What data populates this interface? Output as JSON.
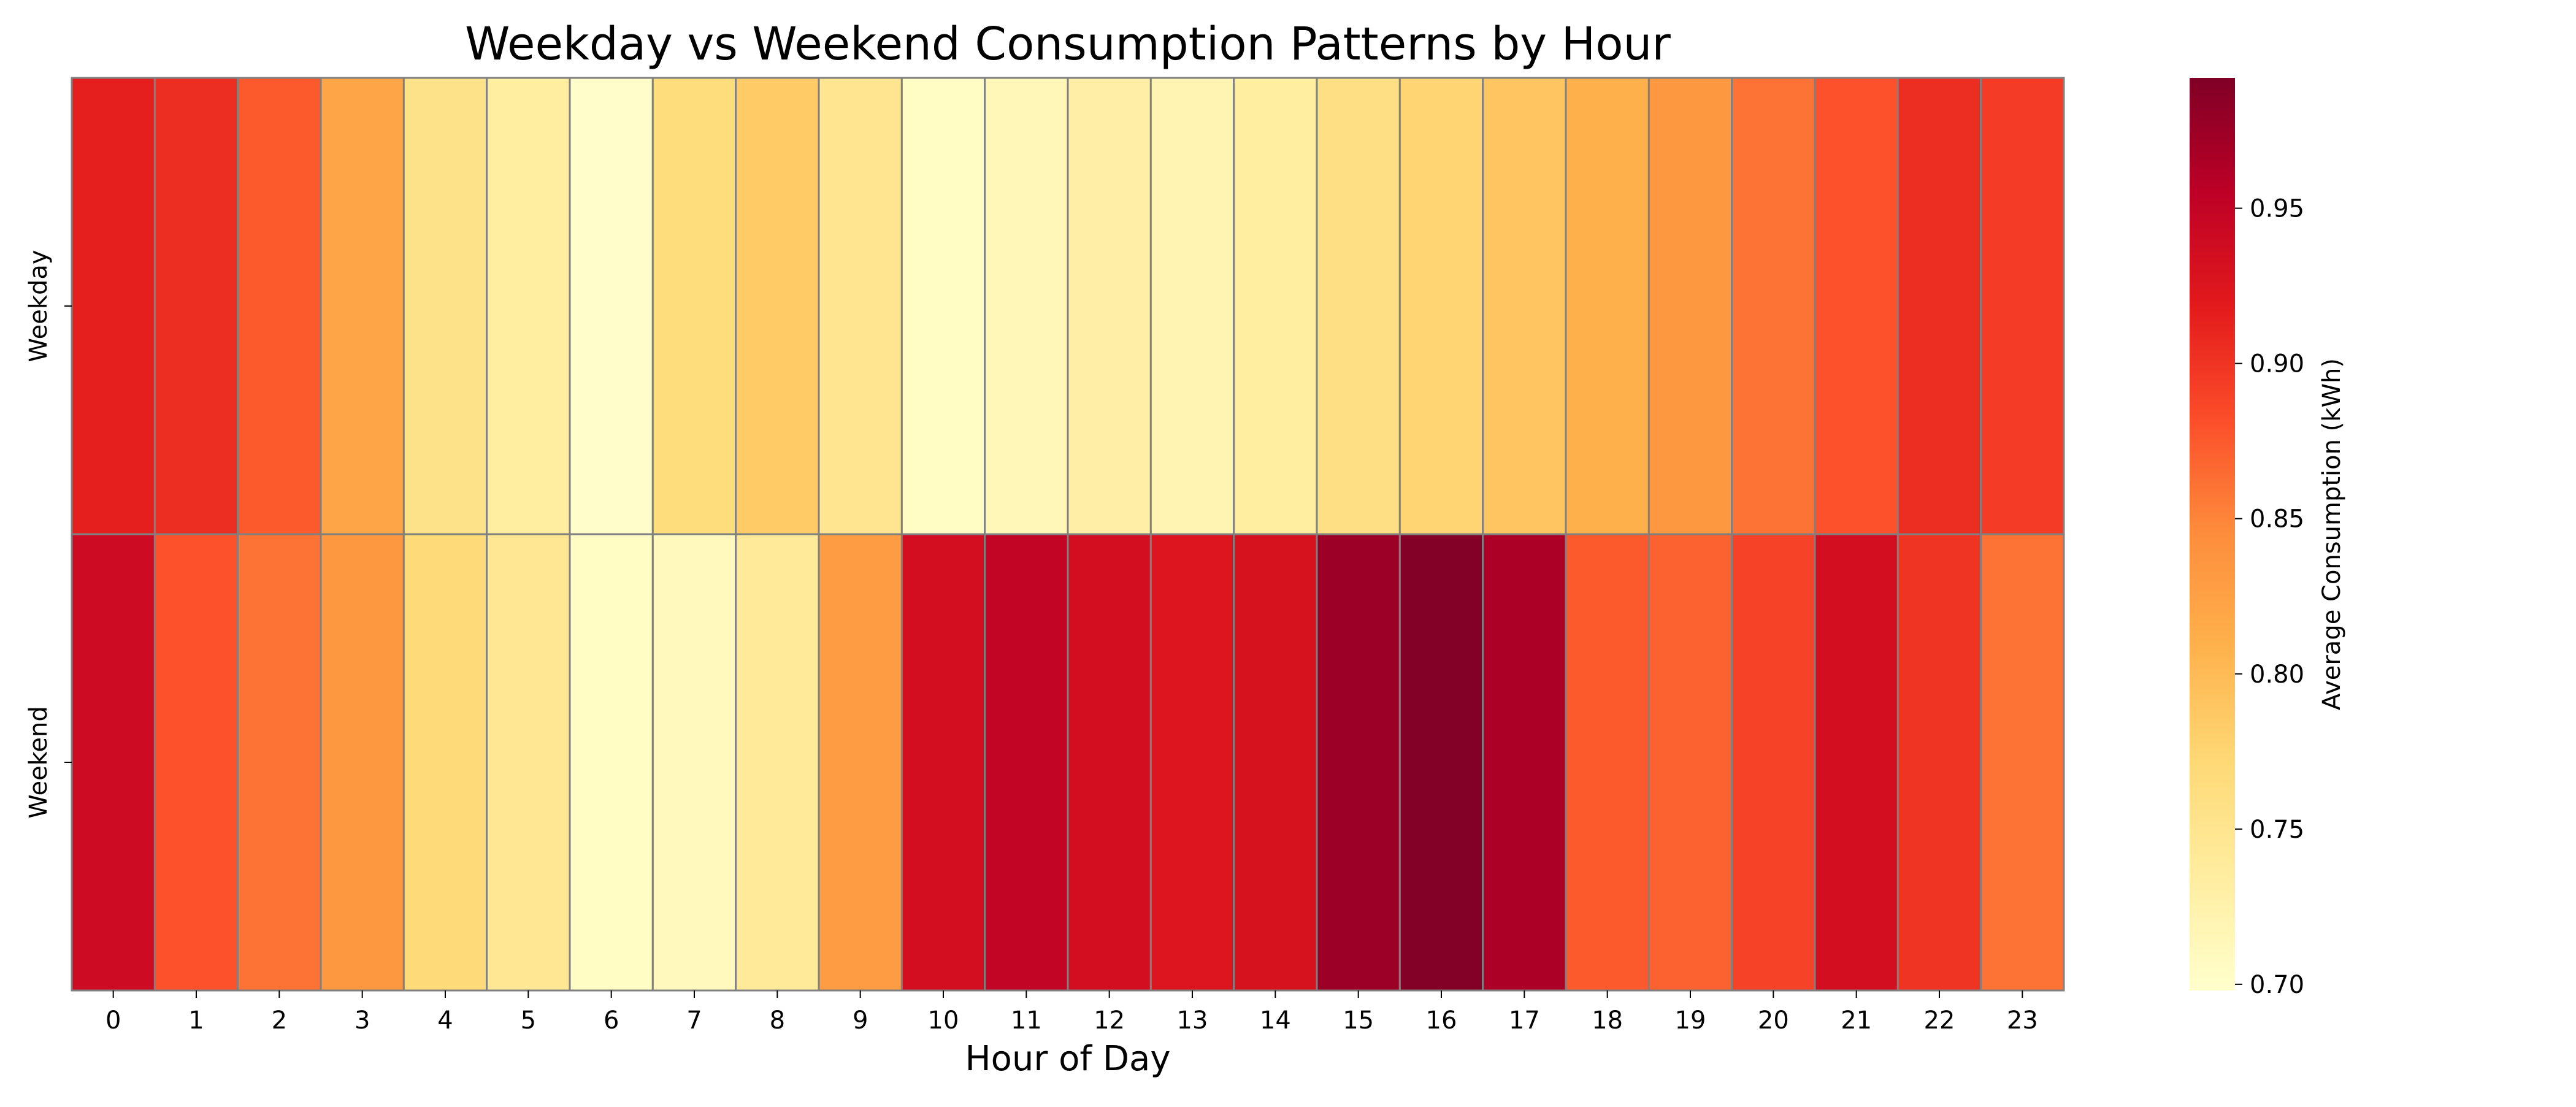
{
  "chart_data": {
    "type": "heatmap",
    "title": "Weekday vs Weekend Consumption Patterns by Hour",
    "xlabel": "Hour of Day",
    "ylabel": "",
    "x_categories": [
      "0",
      "1",
      "2",
      "3",
      "4",
      "5",
      "6",
      "7",
      "8",
      "9",
      "10",
      "11",
      "12",
      "13",
      "14",
      "15",
      "16",
      "17",
      "18",
      "19",
      "20",
      "21",
      "22",
      "23"
    ],
    "y_categories": [
      "Weekday",
      "Weekend"
    ],
    "values": [
      [
        0.915,
        0.905,
        0.875,
        0.82,
        0.755,
        0.735,
        0.7,
        0.765,
        0.785,
        0.75,
        0.705,
        0.715,
        0.73,
        0.72,
        0.735,
        0.76,
        0.775,
        0.79,
        0.81,
        0.835,
        0.86,
        0.88,
        0.905,
        0.895
      ],
      [
        0.94,
        0.88,
        0.86,
        0.835,
        0.77,
        0.745,
        0.705,
        0.71,
        0.74,
        0.83,
        0.935,
        0.95,
        0.935,
        0.925,
        0.93,
        0.975,
        0.99,
        0.965,
        0.875,
        0.87,
        0.89,
        0.935,
        0.9,
        0.86
      ]
    ],
    "colorbar": {
      "label": "Average Consumption (kWh)",
      "min": 0.698,
      "max": 0.992,
      "ticks": [
        0.7,
        0.75,
        0.8,
        0.85,
        0.9,
        0.95
      ],
      "tick_labels": [
        "0.70",
        "0.75",
        "0.80",
        "0.85",
        "0.90",
        "0.95"
      ],
      "colormap": "YlOrRd",
      "colormap_stops": [
        "#ffffcc",
        "#ffeda0",
        "#fed976",
        "#feb24c",
        "#fd8d3c",
        "#fc4e2a",
        "#e31a1c",
        "#bd0026",
        "#800026"
      ]
    },
    "cell_border_color": "#808080",
    "grid": false
  }
}
